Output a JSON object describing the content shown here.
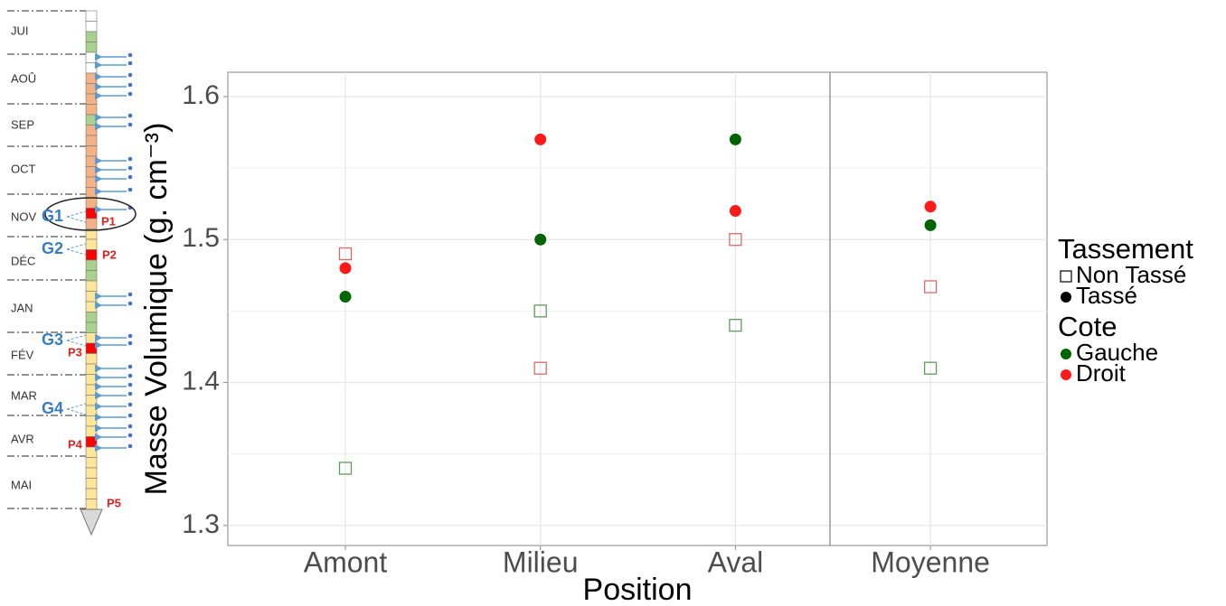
{
  "timeline": {
    "months": [
      "JUI",
      "AOÛ",
      "SEP",
      "OCT",
      "NOV",
      "DÉC",
      "JAN",
      "FÉV",
      "MAR",
      "AVR",
      "MAI"
    ],
    "groups": [
      "G1",
      "G2",
      "G3",
      "G4"
    ],
    "points": [
      "P1",
      "P2",
      "P3",
      "P4",
      "P5"
    ]
  },
  "chart_data": {
    "type": "scatter",
    "xlabel": "Position",
    "ylabel": "Masse Volumique (g. cm⁻³)",
    "categories": [
      "Amont",
      "Milieu",
      "Aval",
      "Moyenne"
    ],
    "ylim": [
      1.286,
      1.617
    ],
    "yticks": [
      1.3,
      1.4,
      1.5,
      1.6
    ],
    "grid": true,
    "legends": [
      {
        "title": "Tassement",
        "entries": [
          {
            "name": "Non Tassé",
            "shape": "open-square"
          },
          {
            "name": "Tassé",
            "shape": "dot"
          }
        ]
      },
      {
        "title": "Cote",
        "entries": [
          {
            "name": "Gauche",
            "color": "#006400"
          },
          {
            "name": "Droit",
            "color": "#ff1a1a"
          }
        ]
      }
    ],
    "series": [
      {
        "shape": "open-square",
        "color": "#5f9a5f",
        "values": [
          1.34,
          1.45,
          1.44,
          1.41
        ]
      },
      {
        "shape": "open-square",
        "color": "#d86a6a",
        "values": [
          1.49,
          1.41,
          1.5,
          1.467
        ]
      },
      {
        "shape": "dot",
        "color": "#006400",
        "values": [
          1.46,
          1.5,
          1.57,
          1.51
        ]
      },
      {
        "shape": "dot",
        "color": "#ff1a1a",
        "values": [
          1.48,
          1.57,
          1.52,
          1.523
        ]
      }
    ]
  }
}
